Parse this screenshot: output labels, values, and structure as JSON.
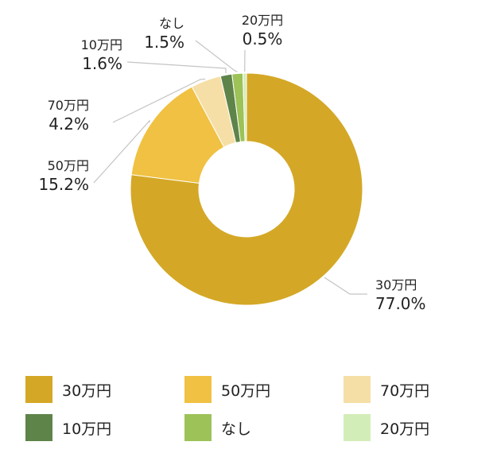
{
  "chart_data": {
    "type": "pie",
    "variant": "donut",
    "slices": [
      {
        "label": "30万円",
        "value": 77.0,
        "value_text": "77.0%",
        "color": "#D4A826"
      },
      {
        "label": "50万円",
        "value": 15.2,
        "value_text": "15.2%",
        "color": "#F0C142"
      },
      {
        "label": "70万円",
        "value": 4.2,
        "value_text": "4.2%",
        "color": "#F6DFA6"
      },
      {
        "label": "10万円",
        "value": 1.6,
        "value_text": "1.6%",
        "color": "#5E844A"
      },
      {
        "label": "なし",
        "value": 1.5,
        "value_text": "1.5%",
        "color": "#9DC257"
      },
      {
        "label": "20万円",
        "value": 0.5,
        "value_text": "0.5%",
        "color": "#D3EDB8"
      }
    ],
    "start": "12 o'clock",
    "direction": "clockwise",
    "legend_position": "bottom",
    "legend_columns": 3
  }
}
